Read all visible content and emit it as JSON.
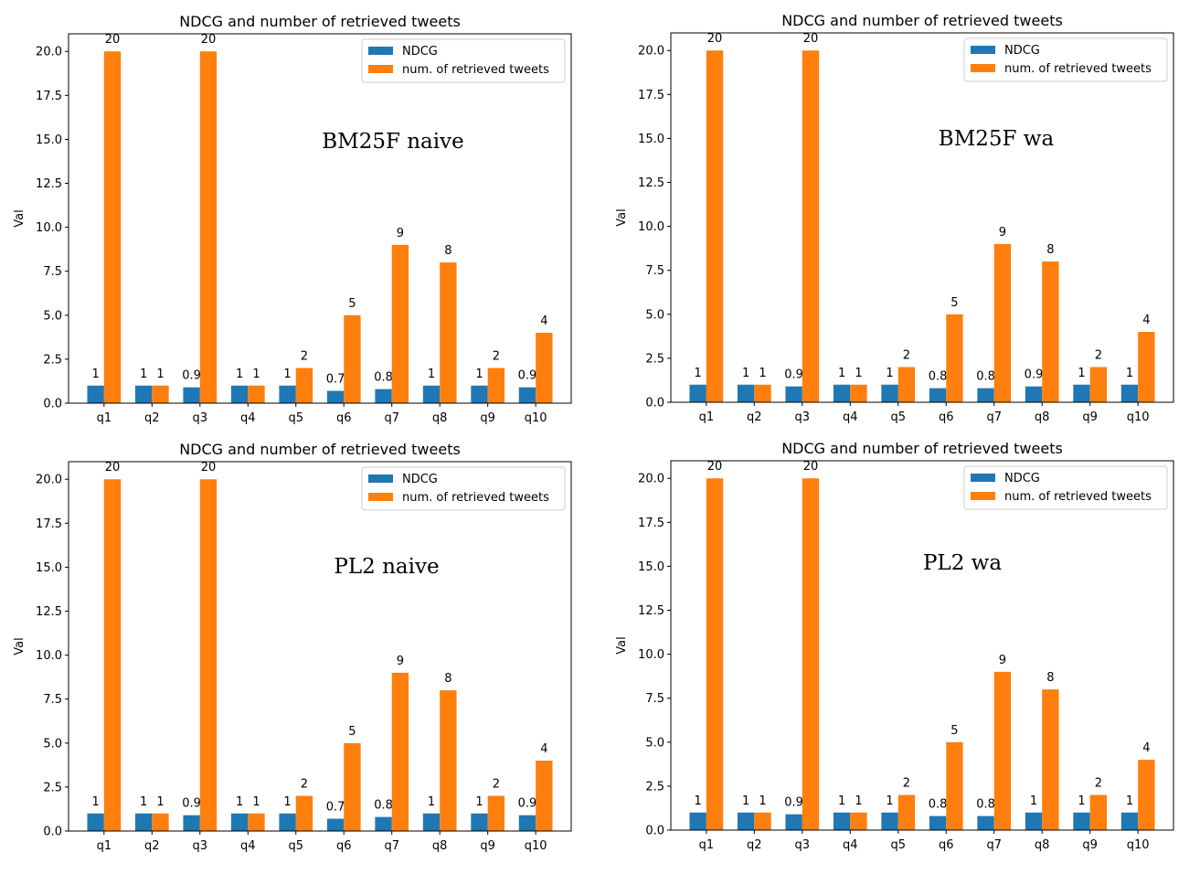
{
  "colors": {
    "ndcg": "#1f77b4",
    "retrieved": "#ff7f0e",
    "axes": "#000000"
  },
  "chart_data": [
    {
      "type": "bar",
      "title": "NDCG and number of retrieved tweets",
      "annotation": "BM25F  naive",
      "ylabel": "Val",
      "categories": [
        "q1",
        "q2",
        "q3",
        "q4",
        "q5",
        "q6",
        "q7",
        "q8",
        "q9",
        "q10"
      ],
      "ylim": [
        0,
        21
      ],
      "yticks": [
        "0.0",
        "2.5",
        "5.0",
        "7.5",
        "10.0",
        "12.5",
        "15.0",
        "17.5",
        "20.0"
      ],
      "legend_position": "top-right",
      "series": [
        {
          "name": "NDCG",
          "values": [
            1,
            1,
            0.9,
            1,
            1,
            0.7,
            0.8,
            1,
            1,
            0.9
          ],
          "labels": [
            "1",
            "1",
            "0.9",
            "1",
            "1",
            "0.7",
            "0.8",
            "1",
            "1",
            "0.9"
          ]
        },
        {
          "name": "num. of retrieved tweets",
          "values": [
            20,
            1,
            20,
            1,
            2,
            5,
            9,
            8,
            2,
            4
          ],
          "labels": [
            "20",
            "1",
            "20",
            "1",
            "2",
            "5",
            "9",
            "8",
            "2",
            "4"
          ]
        }
      ]
    },
    {
      "type": "bar",
      "title": "NDCG and number of retrieved tweets",
      "annotation": "BM25F  wa",
      "ylabel": "Val",
      "categories": [
        "q1",
        "q2",
        "q3",
        "q4",
        "q5",
        "q6",
        "q7",
        "q8",
        "q9",
        "q10"
      ],
      "ylim": [
        0,
        21
      ],
      "yticks": [
        "0.0",
        "2.5",
        "5.0",
        "7.5",
        "10.0",
        "12.5",
        "15.0",
        "17.5",
        "20.0"
      ],
      "legend_position": "top-right",
      "series": [
        {
          "name": "NDCG",
          "values": [
            1,
            1,
            0.9,
            1,
            1,
            0.8,
            0.8,
            0.9,
            1,
            1
          ],
          "labels": [
            "1",
            "1",
            "0.9",
            "1",
            "1",
            "0.8",
            "0.8",
            "0.9",
            "1",
            "1"
          ]
        },
        {
          "name": "num. of retrieved tweets",
          "values": [
            20,
            1,
            20,
            1,
            2,
            5,
            9,
            8,
            2,
            4
          ],
          "labels": [
            "20",
            "1",
            "20",
            "1",
            "2",
            "5",
            "9",
            "8",
            "2",
            "4"
          ]
        }
      ]
    },
    {
      "type": "bar",
      "title": "NDCG and number of retrieved tweets",
      "annotation": "PL2  naive",
      "ylabel": "Val",
      "categories": [
        "q1",
        "q2",
        "q3",
        "q4",
        "q5",
        "q6",
        "q7",
        "q8",
        "q9",
        "q10"
      ],
      "ylim": [
        0,
        21
      ],
      "yticks": [
        "0.0",
        "2.5",
        "5.0",
        "7.5",
        "10.0",
        "12.5",
        "15.0",
        "17.5",
        "20.0"
      ],
      "legend_position": "top-right",
      "series": [
        {
          "name": "NDCG",
          "values": [
            1,
            1,
            0.9,
            1,
            1,
            0.7,
            0.8,
            1,
            1,
            0.9
          ],
          "labels": [
            "1",
            "1",
            "0.9",
            "1",
            "1",
            "0.7",
            "0.8",
            "1",
            "1",
            "0.9"
          ]
        },
        {
          "name": "num. of retrieved tweets",
          "values": [
            20,
            1,
            20,
            1,
            2,
            5,
            9,
            8,
            2,
            4
          ],
          "labels": [
            "20",
            "1",
            "20",
            "1",
            "2",
            "5",
            "9",
            "8",
            "2",
            "4"
          ]
        }
      ]
    },
    {
      "type": "bar",
      "title": "NDCG and number of retrieved tweets",
      "annotation": "PL2  wa",
      "ylabel": "Val",
      "categories": [
        "q1",
        "q2",
        "q3",
        "q4",
        "q5",
        "q6",
        "q7",
        "q8",
        "q9",
        "q10"
      ],
      "ylim": [
        0,
        21
      ],
      "yticks": [
        "0.0",
        "2.5",
        "5.0",
        "7.5",
        "10.0",
        "12.5",
        "15.0",
        "17.5",
        "20.0"
      ],
      "legend_position": "top-right",
      "series": [
        {
          "name": "NDCG",
          "values": [
            1,
            1,
            0.9,
            1,
            1,
            0.8,
            0.8,
            1,
            1,
            1
          ],
          "labels": [
            "1",
            "1",
            "0.9",
            "1",
            "1",
            "0.8",
            "0.8",
            "1",
            "1",
            "1"
          ]
        },
        {
          "name": "num. of retrieved tweets",
          "values": [
            20,
            1,
            20,
            1,
            2,
            5,
            9,
            8,
            2,
            4
          ],
          "labels": [
            "20",
            "1",
            "20",
            "1",
            "2",
            "5",
            "9",
            "8",
            "2",
            "4"
          ]
        }
      ]
    }
  ]
}
